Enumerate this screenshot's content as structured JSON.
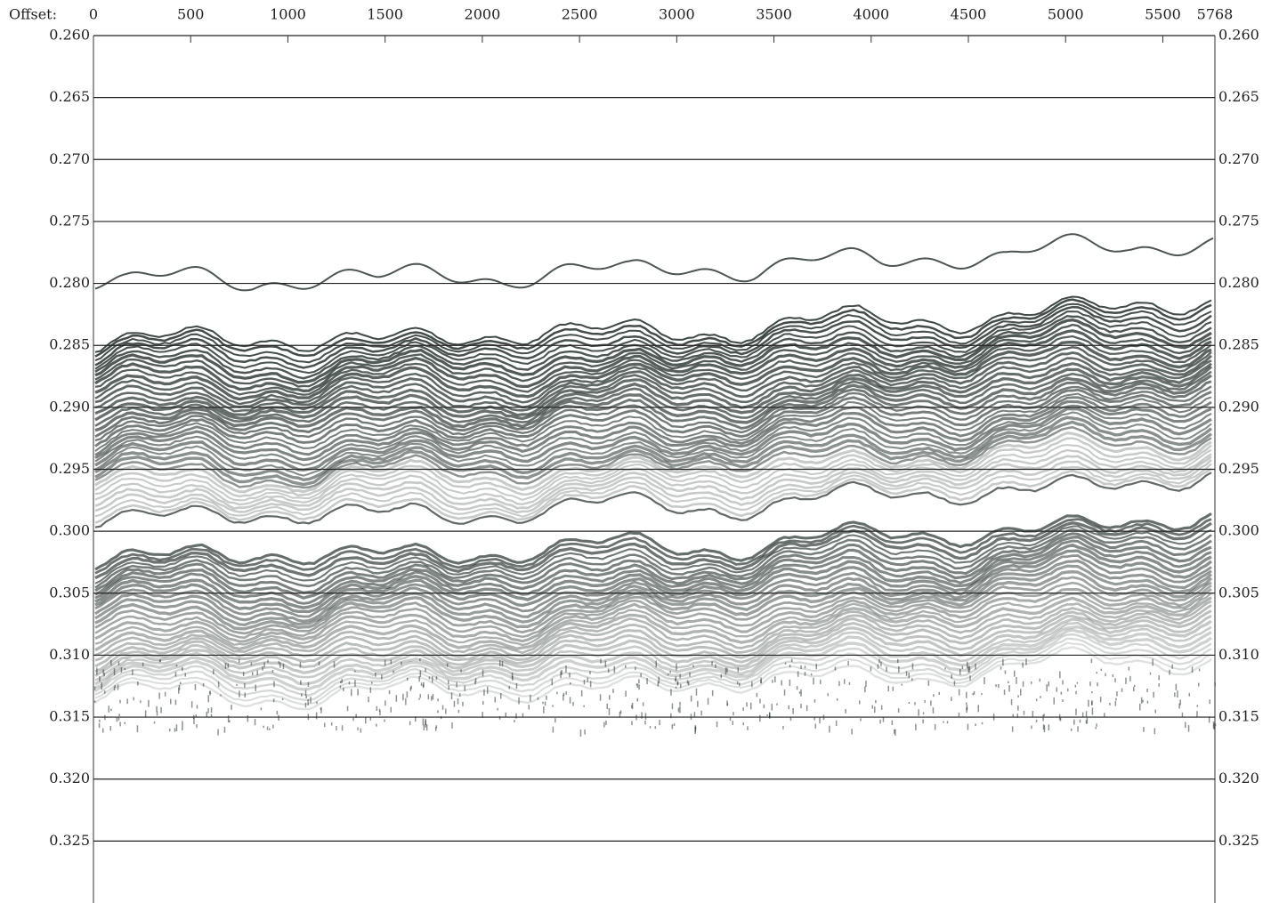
{
  "chart_data": {
    "type": "seismic-section",
    "x_label": "Offset:",
    "xlim": [
      0,
      5768
    ],
    "xticks": [
      0,
      500,
      1000,
      1500,
      2000,
      2500,
      3000,
      3500,
      4000,
      4500,
      5000,
      5500,
      5768
    ],
    "ylim": [
      0.26,
      0.33
    ],
    "y_inverted": true,
    "yticks": [
      {
        "value": 0.26,
        "label": "0.260"
      },
      {
        "value": 0.265,
        "label": "0.265"
      },
      {
        "value": 0.27,
        "label": "0.270"
      },
      {
        "value": 0.275,
        "label": "0.275"
      },
      {
        "value": 0.28,
        "label": "0.280"
      },
      {
        "value": 0.285,
        "label": "0.285"
      },
      {
        "value": 0.29,
        "label": "0.290"
      },
      {
        "value": 0.295,
        "label": "0.295"
      },
      {
        "value": 0.3,
        "label": "0.300"
      },
      {
        "value": 0.305,
        "label": "0.305"
      },
      {
        "value": 0.31,
        "label": "0.310"
      },
      {
        "value": 0.315,
        "label": "0.315"
      },
      {
        "value": 0.32,
        "label": "0.320"
      },
      {
        "value": 0.325,
        "label": "0.325"
      }
    ],
    "grid": true,
    "color": "#1f2a26"
  }
}
